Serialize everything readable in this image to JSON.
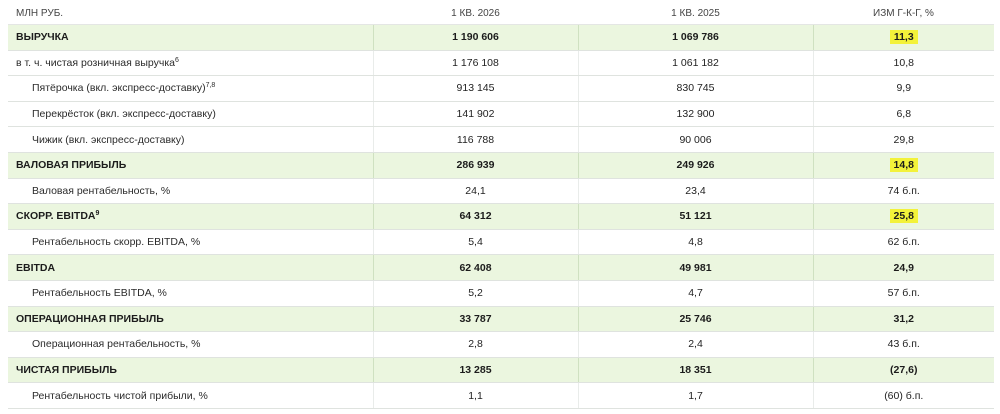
{
  "header": {
    "label": "МЛН РУБ.",
    "col1": "1 КВ. 2026",
    "col2": "1 КВ. 2025",
    "col3": "ИЗМ Г-К-Г, %"
  },
  "rows": [
    {
      "label": "ВЫРУЧКА",
      "sup": "",
      "v1": "1 190 606",
      "v2": "1 069 786",
      "v3": "11,3"
    },
    {
      "label": "в т. ч. чистая розничная выручка",
      "sup": "6",
      "v1": "1 176 108",
      "v2": "1 061 182",
      "v3": "10,8"
    },
    {
      "label": "Пятёрочка (вкл. экспресс-доставку)",
      "sup": "7,8",
      "v1": "913 145",
      "v2": "830 745",
      "v3": "9,9"
    },
    {
      "label": "Перекрёсток (вкл. экспресс-доставку)",
      "sup": "",
      "v1": "141 902",
      "v2": "132 900",
      "v3": "6,8"
    },
    {
      "label": "Чижик (вкл. экспресс-доставку)",
      "sup": "",
      "v1": "116 788",
      "v2": "90 006",
      "v3": "29,8"
    },
    {
      "label": "ВАЛОВАЯ ПРИБЫЛЬ",
      "sup": "",
      "v1": "286 939",
      "v2": "249 926",
      "v3": "14,8"
    },
    {
      "label": "Валовая рентабельность, %",
      "sup": "",
      "v1": "24,1",
      "v2": "23,4",
      "v3": "74 б.п."
    },
    {
      "label": "СКОРР. EBITDA",
      "sup": "9",
      "v1": "64 312",
      "v2": "51 121",
      "v3": "25,8"
    },
    {
      "label": "Рентабельность скорр. EBITDA, %",
      "sup": "",
      "v1": "5,4",
      "v2": "4,8",
      "v3": "62 б.п."
    },
    {
      "label": "EBITDA",
      "sup": "",
      "v1": "62 408",
      "v2": "49 981",
      "v3": "24,9"
    },
    {
      "label": "Рентабельность EBITDA, %",
      "sup": "",
      "v1": "5,2",
      "v2": "4,7",
      "v3": "57 б.п."
    },
    {
      "label": "ОПЕРАЦИОННАЯ ПРИБЫЛЬ",
      "sup": "",
      "v1": "33 787",
      "v2": "25 746",
      "v3": "31,2"
    },
    {
      "label": "Операционная рентабельность, %",
      "sup": "",
      "v1": "2,8",
      "v2": "2,4",
      "v3": "43 б.п."
    },
    {
      "label": "ЧИСТАЯ ПРИБЫЛЬ",
      "sup": "",
      "v1": "13 285",
      "v2": "18 351",
      "v3": "(27,6)"
    },
    {
      "label": "Рентабельность чистой прибыли, %",
      "sup": "",
      "v1": "1,1",
      "v2": "1,7",
      "v3": "(60) б.п."
    }
  ],
  "colors": {
    "main_row_bg": "#ebf6df",
    "highlight": "#f3f23a",
    "border": "#dfe3df"
  }
}
